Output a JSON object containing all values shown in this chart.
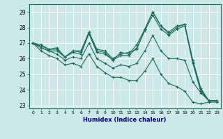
{
  "xlabel": "Humidex (Indice chaleur)",
  "background_color": "#cde8e8",
  "grid_color": "#ffffff",
  "line_color": "#1a6b5a",
  "xlim": [
    -0.5,
    23.5
  ],
  "ylim": [
    22.8,
    29.5
  ],
  "yticks": [
    23,
    24,
    25,
    26,
    27,
    28,
    29
  ],
  "xticks": [
    0,
    1,
    2,
    3,
    4,
    5,
    6,
    7,
    8,
    9,
    10,
    11,
    12,
    13,
    14,
    15,
    16,
    17,
    18,
    19,
    20,
    21,
    22,
    23
  ],
  "series": [
    [
      27.0,
      26.9,
      26.6,
      26.7,
      26.1,
      26.5,
      26.5,
      27.7,
      26.6,
      26.5,
      26.0,
      26.3,
      26.4,
      26.6,
      27.9,
      29.0,
      28.1,
      27.7,
      28.1,
      28.2,
      25.9,
      24.1,
      23.3,
      23.3
    ],
    [
      27.0,
      26.8,
      26.6,
      26.6,
      26.1,
      26.5,
      26.4,
      27.7,
      26.5,
      26.4,
      25.9,
      26.4,
      26.3,
      26.9,
      27.9,
      29.0,
      28.1,
      27.6,
      28.0,
      28.2,
      25.8,
      24.0,
      23.3,
      23.3
    ],
    [
      27.0,
      26.7,
      26.5,
      26.5,
      26.1,
      26.4,
      26.3,
      27.6,
      26.4,
      26.3,
      25.9,
      26.2,
      26.2,
      26.7,
      27.8,
      28.8,
      27.9,
      27.5,
      27.9,
      28.1,
      25.7,
      23.9,
      23.3,
      23.3
    ],
    [
      27.0,
      26.7,
      26.5,
      26.3,
      25.9,
      26.1,
      26.0,
      27.0,
      26.0,
      25.7,
      25.4,
      25.6,
      25.5,
      25.7,
      26.5,
      27.5,
      26.5,
      26.0,
      26.0,
      25.9,
      24.5,
      23.8,
      23.3,
      23.3
    ],
    [
      27.0,
      26.5,
      26.2,
      26.0,
      25.6,
      25.7,
      25.5,
      26.3,
      25.5,
      25.1,
      24.8,
      24.8,
      24.6,
      24.6,
      25.2,
      26.0,
      25.0,
      24.4,
      24.2,
      23.9,
      23.2,
      23.1,
      23.2,
      23.2
    ]
  ]
}
